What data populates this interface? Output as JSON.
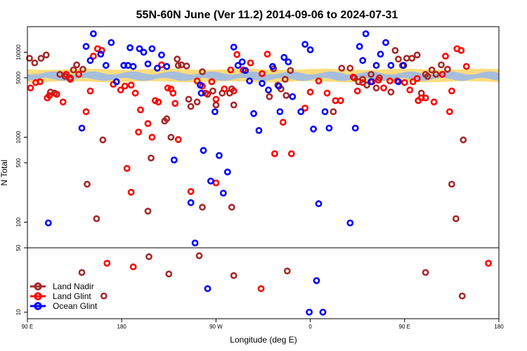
{
  "chart_data": {
    "type": "scatter",
    "title": "55N-60N June (Ver 11.2)   2014-09-06 to 2024-07-31",
    "xlabel": "Longitude (deg E)",
    "ylabel": "N Total",
    "x_ticks": [
      "90 E",
      "180",
      "90 W",
      "0",
      "90 E",
      "180"
    ],
    "x_tick_values": [
      90,
      180,
      270,
      360,
      450,
      540
    ],
    "xlim": [
      90,
      540
    ],
    "y_upper_ticks": [
      {
        "label": "10000",
        "value": 10000
      },
      {
        "label": "5000",
        "value": 5000
      },
      {
        "label": "1000",
        "value": 1000
      },
      {
        "label": "500",
        "value": 500
      },
      {
        "label": "100",
        "value": 100
      }
    ],
    "y_lower_ticks": [
      {
        "label": "50",
        "value": 50
      },
      {
        "label": "10",
        "value": 10
      }
    ],
    "y_scale": "log",
    "ylim_upper": [
      50,
      20000
    ],
    "ylim_lower": [
      8.5,
      50
    ],
    "bands": {
      "yellow": {
        "range": [
          4500,
          6300
        ],
        "color": "#fddc7e"
      },
      "blue": {
        "range": [
          4800,
          5700
        ],
        "color": "#a6bddb"
      }
    },
    "legend_position": "bottom-left",
    "series": [
      {
        "name": "Land Nadir",
        "color": "#a52a2a",
        "points": [
          [
            92,
            8500
          ],
          [
            97,
            7500
          ],
          [
            103,
            8500
          ],
          [
            108,
            9300
          ],
          [
            112,
            3400
          ],
          [
            116,
            3300
          ],
          [
            121,
            5500
          ],
          [
            126,
            5200
          ],
          [
            131,
            5000
          ],
          [
            134,
            6200
          ],
          [
            137,
            7100
          ],
          [
            143,
            6300
          ],
          [
            147,
            280
          ],
          [
            156,
            110
          ],
          [
            162,
            930
          ],
          [
            208,
            570
          ],
          [
            221,
            1550
          ],
          [
            223,
            1650
          ],
          [
            227,
            1000
          ],
          [
            233,
            8300
          ],
          [
            234,
            7000
          ],
          [
            237,
            7100
          ],
          [
            242,
            6900
          ],
          [
            244,
            2800
          ],
          [
            246,
            2300
          ],
          [
            252,
            2600
          ],
          [
            257,
            5900
          ],
          [
            262,
            3200
          ],
          [
            267,
            3500
          ],
          [
            270,
            2400
          ],
          [
            276,
            3300
          ],
          [
            283,
            3300
          ],
          [
            285,
            3700
          ],
          [
            287,
            2400
          ],
          [
            321,
            3000
          ],
          [
            325,
            6400
          ],
          [
            329,
            4100
          ],
          [
            332,
            3700
          ],
          [
            336,
            4800
          ],
          [
            337,
            3100
          ],
          [
            341,
            6100
          ],
          [
            382,
            2000
          ],
          [
            390,
            6500
          ],
          [
            398,
            6500
          ],
          [
            402,
            5000
          ],
          [
            406,
            4500
          ],
          [
            410,
            4800
          ],
          [
            414,
            4100
          ],
          [
            418,
            5500
          ],
          [
            423,
            3800
          ],
          [
            426,
            5000
          ],
          [
            437,
            3400
          ],
          [
            441,
            10500
          ],
          [
            444,
            8300
          ],
          [
            448,
            7000
          ],
          [
            452,
            8500
          ],
          [
            457,
            8500
          ],
          [
            462,
            9300
          ],
          [
            466,
            3300
          ],
          [
            470,
            5500
          ],
          [
            472,
            5200
          ],
          [
            476,
            6200
          ],
          [
            480,
            5500
          ],
          [
            485,
            7100
          ],
          [
            491,
            6300
          ],
          [
            495,
            280
          ],
          [
            499,
            110
          ],
          [
            506,
            930
          ],
          [
            205,
            135
          ],
          [
            257,
            150
          ],
          [
            285,
            150
          ]
        ],
        "points_lower": [
          [
            142,
            27
          ],
          [
            163,
            15
          ],
          [
            206,
            40
          ],
          [
            225,
            26
          ],
          [
            254,
            41
          ],
          [
            287,
            25
          ],
          [
            338,
            28
          ],
          [
            505,
            15
          ],
          [
            470,
            27
          ]
        ]
      },
      {
        "name": "Land Glint",
        "color": "#ff0000",
        "points": [
          [
            93,
            3800
          ],
          [
            98,
            4400
          ],
          [
            102,
            4500
          ],
          [
            109,
            2900
          ],
          [
            111,
            3100
          ],
          [
            118,
            3200
          ],
          [
            124,
            2600
          ],
          [
            127,
            5500
          ],
          [
            131,
            4800
          ],
          [
            139,
            5500
          ],
          [
            146,
            2000
          ],
          [
            150,
            3500
          ],
          [
            153,
            9000
          ],
          [
            157,
            11000
          ],
          [
            161,
            10500
          ],
          [
            172,
            4200
          ],
          [
            179,
            3600
          ],
          [
            183,
            4000
          ],
          [
            189,
            4100
          ],
          [
            193,
            3300
          ],
          [
            196,
            1150
          ],
          [
            198,
            2100
          ],
          [
            205,
            1450
          ],
          [
            209,
            1000
          ],
          [
            212,
            2700
          ],
          [
            215,
            2600
          ],
          [
            218,
            7100
          ],
          [
            224,
            3800
          ],
          [
            227,
            3700
          ],
          [
            229,
            3300
          ],
          [
            231,
            2500
          ],
          [
            234,
            940
          ],
          [
            246,
            230
          ],
          [
            252,
            4600
          ],
          [
            257,
            4000
          ],
          [
            260,
            3300
          ],
          [
            266,
            4500
          ],
          [
            270,
            290
          ],
          [
            270,
            2800
          ],
          [
            278,
            3700
          ],
          [
            284,
            6200
          ],
          [
            287,
            3500
          ],
          [
            290,
            9400
          ],
          [
            296,
            6200
          ],
          [
            303,
            7500
          ],
          [
            314,
            5600
          ],
          [
            319,
            9500
          ],
          [
            326,
            640
          ],
          [
            334,
            1500
          ],
          [
            342,
            640
          ],
          [
            355,
            2200
          ],
          [
            360,
            3400
          ],
          [
            368,
            4600
          ],
          [
            376,
            3300
          ],
          [
            384,
            2700
          ],
          [
            389,
            2700
          ],
          [
            401,
            5100
          ],
          [
            405,
            3500
          ],
          [
            410,
            4400
          ],
          [
            419,
            4500
          ],
          [
            425,
            4700
          ],
          [
            430,
            3800
          ],
          [
            436,
            4600
          ],
          [
            443,
            4600
          ],
          [
            450,
            4400
          ],
          [
            455,
            3600
          ],
          [
            458,
            4500
          ],
          [
            462,
            4900
          ],
          [
            463,
            2700
          ],
          [
            466,
            2900
          ],
          [
            470,
            2900
          ],
          [
            478,
            2600
          ],
          [
            486,
            5500
          ],
          [
            489,
            9000
          ],
          [
            493,
            2000
          ],
          [
            495,
            3500
          ],
          [
            500,
            11000
          ],
          [
            504,
            10500
          ],
          [
            509,
            6800
          ],
          [
            185,
            430
          ],
          [
            189,
            225
          ]
        ],
        "points_lower": [
          [
            166,
            34
          ],
          [
            191,
            31
          ],
          [
            313,
            18
          ],
          [
            530,
            34
          ]
        ]
      },
      {
        "name": "Ocean Glint",
        "color": "#0000ff",
        "points": [
          [
            110,
            98
          ],
          [
            142,
            1280
          ],
          [
            146,
            11700
          ],
          [
            150,
            8000
          ],
          [
            153,
            16500
          ],
          [
            160,
            9500
          ],
          [
            165,
            7000
          ],
          [
            170,
            13000
          ],
          [
            175,
            4500
          ],
          [
            182,
            7000
          ],
          [
            186,
            7000
          ],
          [
            188,
            11300
          ],
          [
            191,
            6800
          ],
          [
            197,
            11000
          ],
          [
            201,
            10000
          ],
          [
            205,
            7300
          ],
          [
            209,
            11000
          ],
          [
            214,
            6500
          ],
          [
            218,
            9300
          ],
          [
            223,
            6800
          ],
          [
            230,
            540
          ],
          [
            246,
            170
          ],
          [
            250,
            57
          ],
          [
            255,
            4100
          ],
          [
            256,
            3300
          ],
          [
            258,
            700
          ],
          [
            265,
            305
          ],
          [
            269,
            2000
          ],
          [
            273,
            610
          ],
          [
            277,
            220
          ],
          [
            281,
            390
          ],
          [
            287,
            11500
          ],
          [
            291,
            7000
          ],
          [
            295,
            7700
          ],
          [
            298,
            6100
          ],
          [
            302,
            4600
          ],
          [
            306,
            1900
          ],
          [
            311,
            1200
          ],
          [
            314,
            4300
          ],
          [
            320,
            3600
          ],
          [
            324,
            6800
          ],
          [
            330,
            4000
          ],
          [
            331,
            2000
          ],
          [
            335,
            8700
          ],
          [
            339,
            7700
          ],
          [
            343,
            3000
          ],
          [
            351,
            2000
          ],
          [
            355,
            12400
          ],
          [
            360,
            10700
          ],
          [
            363,
            1250
          ],
          [
            368,
            165
          ],
          [
            374,
            2000
          ],
          [
            378,
            1280
          ],
          [
            398,
            98
          ],
          [
            403,
            1280
          ],
          [
            407,
            11700
          ],
          [
            410,
            8000
          ],
          [
            413,
            16500
          ],
          [
            418,
            4500
          ],
          [
            423,
            7000
          ],
          [
            427,
            9500
          ],
          [
            432,
            13000
          ],
          [
            437,
            7000
          ],
          [
            444,
            4500
          ],
          [
            449,
            7000
          ]
        ],
        "points_lower": [
          [
            262,
            18
          ],
          [
            359,
            10
          ],
          [
            366,
            22
          ],
          [
            372,
            10
          ]
        ]
      }
    ]
  }
}
